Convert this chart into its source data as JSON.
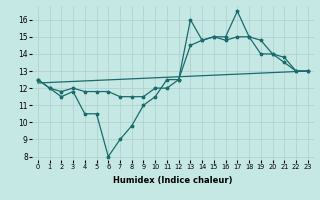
{
  "xlabel": "Humidex (Indice chaleur)",
  "background_color": "#c5e8e5",
  "grid_color": "#b0cccc",
  "line_color": "#1a6b6b",
  "xlim": [
    -0.5,
    23.5
  ],
  "ylim": [
    7.8,
    16.8
  ],
  "yticks": [
    8,
    9,
    10,
    11,
    12,
    13,
    14,
    15,
    16
  ],
  "xticks": [
    0,
    1,
    2,
    3,
    4,
    5,
    6,
    7,
    8,
    9,
    10,
    11,
    12,
    13,
    14,
    15,
    16,
    17,
    18,
    19,
    20,
    21,
    22,
    23
  ],
  "line1_x": [
    0,
    1,
    2,
    3,
    4,
    5,
    6,
    7,
    8,
    9,
    10,
    11,
    12,
    13,
    14,
    15,
    16,
    17,
    18,
    19,
    20,
    21,
    22,
    23
  ],
  "line1_y": [
    12.5,
    12.0,
    11.5,
    11.8,
    10.5,
    10.5,
    8.0,
    9.0,
    9.8,
    11.0,
    11.5,
    12.5,
    12.5,
    16.0,
    14.8,
    15.0,
    15.0,
    16.5,
    15.0,
    14.0,
    14.0,
    13.5,
    13.0,
    13.0
  ],
  "line2_x": [
    0,
    1,
    2,
    3,
    4,
    5,
    6,
    7,
    8,
    9,
    10,
    11,
    12,
    13,
    14,
    15,
    16,
    17,
    18,
    19,
    20,
    21,
    22,
    23
  ],
  "line2_y": [
    12.5,
    12.0,
    11.8,
    12.0,
    11.8,
    11.8,
    11.8,
    11.5,
    11.5,
    11.5,
    12.0,
    12.0,
    12.5,
    14.5,
    14.8,
    15.0,
    14.8,
    15.0,
    15.0,
    14.8,
    14.0,
    13.8,
    13.0,
    13.0
  ],
  "line3_x": [
    0,
    23
  ],
  "line3_y": [
    12.3,
    13.0
  ]
}
